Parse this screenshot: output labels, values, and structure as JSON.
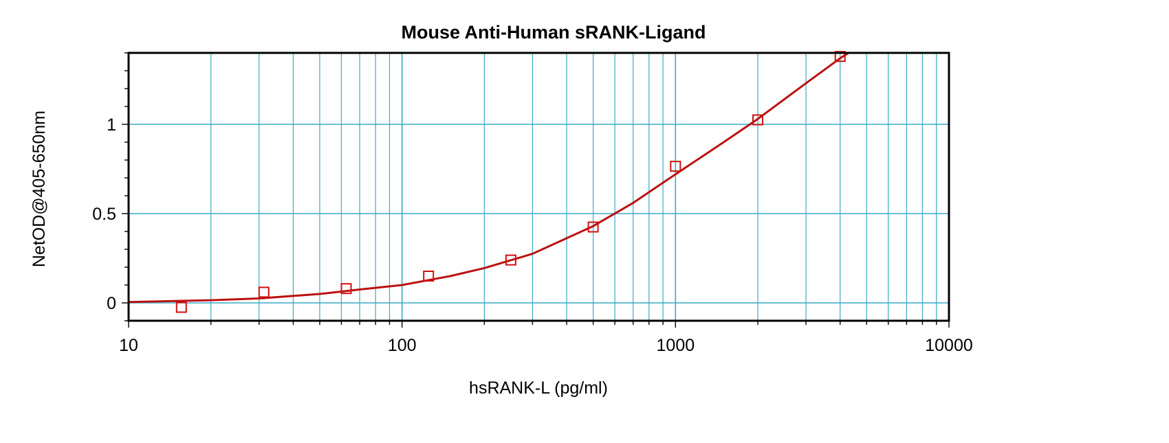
{
  "chart_data": {
    "type": "scatter",
    "title": "Mouse Anti-Human sRANK-Ligand",
    "xlabel": "hsRANK-L (pg/ml)",
    "ylabel": "NetOD@405-650nm",
    "x_scale": "log",
    "xlim": [
      10,
      10000
    ],
    "ylim": [
      -0.1,
      1.4
    ],
    "x_ticks": [
      10,
      100,
      1000,
      10000
    ],
    "x_tick_labels": [
      "10",
      "100",
      "1000",
      "10000"
    ],
    "y_ticks": [
      0,
      0.5,
      1
    ],
    "y_tick_labels": [
      "0",
      "0.5",
      "1"
    ],
    "grid": true,
    "series": [
      {
        "kind": "points",
        "marker": "open-square",
        "color": "#cc1111",
        "x": [
          15.6,
          31.25,
          62.5,
          125,
          250,
          500,
          1000,
          2000,
          4000
        ],
        "y": [
          -0.025,
          0.06,
          0.08,
          0.15,
          0.24,
          0.425,
          0.765,
          1.025,
          1.38
        ]
      },
      {
        "kind": "fit-curve",
        "color": "#bb1111",
        "x": [
          10,
          20,
          30,
          50,
          70,
          100,
          150,
          200,
          300,
          500,
          700,
          1000,
          1500,
          2000,
          3000,
          4000,
          4500
        ],
        "y": [
          0.005,
          0.015,
          0.025,
          0.05,
          0.075,
          0.1,
          0.15,
          0.195,
          0.275,
          0.43,
          0.56,
          0.72,
          0.9,
          1.03,
          1.23,
          1.37,
          1.42
        ]
      }
    ],
    "colors": {
      "grid": "#3aaac6",
      "frame": "#000000",
      "points": "#cc1111",
      "curve": "#bb1111"
    }
  }
}
